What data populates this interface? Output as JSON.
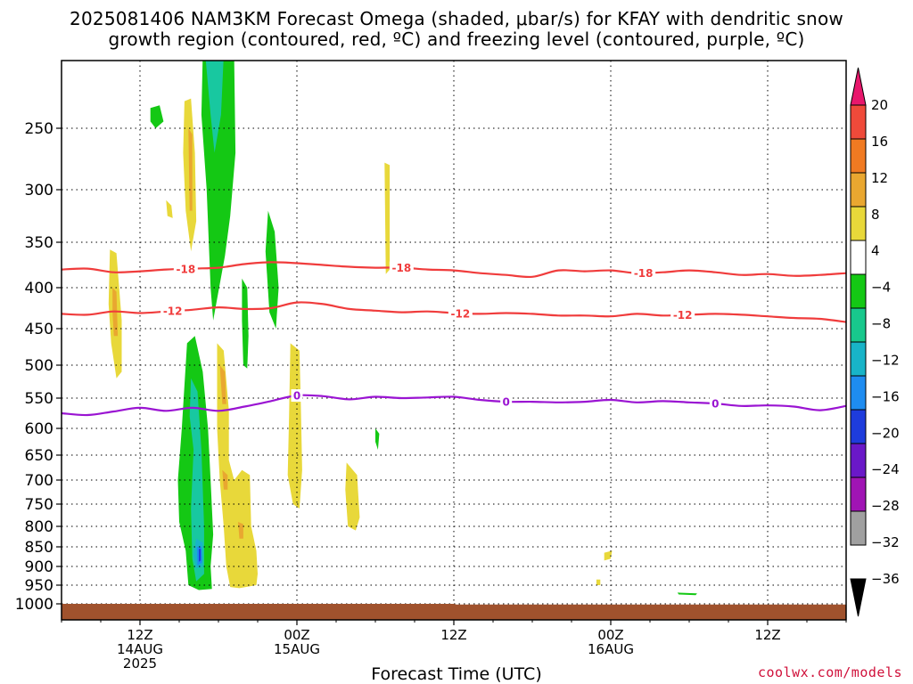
{
  "title_line1": "2025081406 NAM3KM Forecast Omega (shaded, μbar/s) for KFAY with dendritic snow",
  "title_line2": "growth region (contoured, red, ºC) and freezing level (contoured, purple, ºC)",
  "credit": "coolwx.com/models",
  "chart_data": {
    "type": "time-height cross section",
    "xlabel": "Forecast Time (UTC)",
    "x_ticks": [
      {
        "label": [
          "12Z",
          "14AUG",
          "2025"
        ],
        "hour": 6
      },
      {
        "label": [
          "00Z",
          "15AUG"
        ],
        "hour": 18
      },
      {
        "label": [
          "12Z"
        ],
        "hour": 30
      },
      {
        "label": [
          "00Z",
          "16AUG"
        ],
        "hour": 42
      },
      {
        "label": [
          "12Z"
        ],
        "hour": 54
      }
    ],
    "x_range_hours": [
      0,
      60
    ],
    "y_axis": "pressure (hPa)",
    "y_ticks": [
      250,
      300,
      350,
      400,
      450,
      500,
      550,
      600,
      650,
      700,
      750,
      800,
      850,
      900,
      950,
      1000
    ],
    "y_range": [
      200,
      1025
    ],
    "gridlines": "dotted",
    "colorbar": {
      "labels": [
        "20",
        "16",
        "12",
        "8",
        "4",
        "−4",
        "−8",
        "−12",
        "−16",
        "−20",
        "−24",
        "−28",
        "−32",
        "−36"
      ],
      "colors_top_to_bottom": [
        "#e8176c",
        "#ef4a3a",
        "#f07a22",
        "#e9a730",
        "#e8d83a",
        "#ffffff",
        "#14c814",
        "#18c88c",
        "#18b4c8",
        "#1e8cf0",
        "#1e3cdc",
        "#6a18c8",
        "#a014b4",
        "#a0a0a0",
        "#000000"
      ]
    },
    "contours": [
      {
        "name": "-18",
        "color": "#f03c3c",
        "label": "-18",
        "points": [
          [
            0,
            380
          ],
          [
            2,
            379
          ],
          [
            4,
            383
          ],
          [
            6,
            382
          ],
          [
            8,
            380
          ],
          [
            10,
            379
          ],
          [
            12,
            378
          ],
          [
            14,
            374
          ],
          [
            16,
            372
          ],
          [
            18,
            373
          ],
          [
            20,
            375
          ],
          [
            22,
            377
          ],
          [
            24,
            378
          ],
          [
            26,
            378
          ],
          [
            28,
            380
          ],
          [
            30,
            381
          ],
          [
            32,
            384
          ],
          [
            34,
            386
          ],
          [
            36,
            388
          ],
          [
            38,
            381
          ],
          [
            40,
            382
          ],
          [
            42,
            381
          ],
          [
            44,
            384
          ],
          [
            46,
            383
          ],
          [
            48,
            381
          ],
          [
            50,
            383
          ],
          [
            52,
            386
          ],
          [
            54,
            385
          ],
          [
            56,
            387
          ],
          [
            58,
            386
          ],
          [
            60,
            384
          ]
        ],
        "label_hours": [
          9.5,
          26,
          44.5
        ]
      },
      {
        "name": "-12",
        "color": "#f03c3c",
        "label": "-12",
        "points": [
          [
            0,
            432
          ],
          [
            2,
            433
          ],
          [
            4,
            429
          ],
          [
            6,
            431
          ],
          [
            8,
            429
          ],
          [
            10,
            427
          ],
          [
            12,
            424
          ],
          [
            14,
            426
          ],
          [
            16,
            425
          ],
          [
            18,
            418
          ],
          [
            20,
            420
          ],
          [
            22,
            426
          ],
          [
            24,
            428
          ],
          [
            26,
            430
          ],
          [
            28,
            429
          ],
          [
            30,
            431
          ],
          [
            32,
            432
          ],
          [
            34,
            431
          ],
          [
            36,
            432
          ],
          [
            38,
            434
          ],
          [
            40,
            434
          ],
          [
            42,
            435
          ],
          [
            44,
            432
          ],
          [
            46,
            434
          ],
          [
            48,
            433
          ],
          [
            50,
            432
          ],
          [
            52,
            433
          ],
          [
            54,
            435
          ],
          [
            56,
            437
          ],
          [
            58,
            438
          ],
          [
            60,
            442
          ]
        ],
        "label_hours": [
          8.5,
          30.5,
          47.5
        ]
      },
      {
        "name": "0",
        "color": "#9a14d2",
        "label": "0",
        "points": [
          [
            0,
            575
          ],
          [
            2,
            578
          ],
          [
            4,
            572
          ],
          [
            6,
            566
          ],
          [
            8,
            571
          ],
          [
            10,
            566
          ],
          [
            12,
            571
          ],
          [
            14,
            564
          ],
          [
            16,
            555
          ],
          [
            18,
            546
          ],
          [
            20,
            547
          ],
          [
            22,
            552
          ],
          [
            24,
            548
          ],
          [
            26,
            550
          ],
          [
            28,
            549
          ],
          [
            30,
            548
          ],
          [
            32,
            553
          ],
          [
            34,
            556
          ],
          [
            36,
            556
          ],
          [
            38,
            557
          ],
          [
            40,
            556
          ],
          [
            42,
            553
          ],
          [
            44,
            557
          ],
          [
            46,
            555
          ],
          [
            48,
            557
          ],
          [
            50,
            559
          ],
          [
            52,
            563
          ],
          [
            54,
            562
          ],
          [
            56,
            564
          ],
          [
            58,
            570
          ],
          [
            60,
            563
          ]
        ],
        "label_hours": [
          18,
          34,
          50
        ]
      }
    ],
    "omega_regions": [
      {
        "level": "-6",
        "color": "#14c814",
        "polygon": [
          [
            10.8,
            196
          ],
          [
            13.2,
            196
          ],
          [
            13.3,
            270
          ],
          [
            12.9,
            325
          ],
          [
            12.5,
            365
          ],
          [
            11.6,
            440
          ],
          [
            11.4,
            400
          ],
          [
            11.1,
            300
          ],
          [
            10.7,
            240
          ]
        ]
      },
      {
        "level": "-12",
        "color": "#18c8a0",
        "polygon": [
          [
            11.0,
            196
          ],
          [
            12.4,
            196
          ],
          [
            12.2,
            240
          ],
          [
            11.7,
            270
          ],
          [
            11.4,
            240
          ]
        ]
      },
      {
        "level": "-6",
        "color": "#14c814",
        "polygon": [
          [
            6.8,
            235
          ],
          [
            7.5,
            233
          ],
          [
            7.8,
            245
          ],
          [
            7.2,
            250
          ],
          [
            6.8,
            245
          ]
        ]
      },
      {
        "level": "-6",
        "color": "#14c814",
        "polygon": [
          [
            15.8,
            320
          ],
          [
            16.3,
            340
          ],
          [
            16.6,
            400
          ],
          [
            16.4,
            450
          ],
          [
            15.9,
            430
          ],
          [
            15.6,
            360
          ]
        ]
      },
      {
        "level": "-6",
        "color": "#14c814",
        "polygon": [
          [
            13.8,
            390
          ],
          [
            14.2,
            400
          ],
          [
            14.3,
            460
          ],
          [
            14.2,
            505
          ],
          [
            13.9,
            500
          ],
          [
            13.8,
            440
          ]
        ]
      },
      {
        "level": "-6",
        "color": "#14c814",
        "polygon": [
          [
            24.0,
            600
          ],
          [
            24.3,
            610
          ],
          [
            24.2,
            640
          ],
          [
            24.0,
            625
          ]
        ]
      },
      {
        "level": "-6",
        "color": "#14c814",
        "polygon": [
          [
            47.1,
            970
          ],
          [
            48.6,
            972
          ],
          [
            48.5,
            977
          ],
          [
            47.2,
            975
          ]
        ]
      },
      {
        "level": "-6",
        "color": "#14c814",
        "polygon": [
          [
            9.6,
            470
          ],
          [
            10.2,
            460
          ],
          [
            10.8,
            510
          ],
          [
            11.2,
            600
          ],
          [
            11.4,
            700
          ],
          [
            11.6,
            820
          ],
          [
            11.4,
            900
          ],
          [
            11.5,
            960
          ],
          [
            10.5,
            963
          ],
          [
            9.7,
            950
          ],
          [
            9.5,
            860
          ],
          [
            9.0,
            790
          ],
          [
            8.9,
            700
          ],
          [
            9.2,
            600
          ]
        ]
      },
      {
        "level": "-12",
        "color": "#18c8a0",
        "polygon": [
          [
            9.9,
            520
          ],
          [
            10.4,
            540
          ],
          [
            10.7,
            640
          ],
          [
            10.9,
            800
          ],
          [
            10.9,
            920
          ],
          [
            10.3,
            940
          ],
          [
            10.0,
            880
          ],
          [
            9.9,
            760
          ],
          [
            10.1,
            640
          ],
          [
            9.8,
            580
          ]
        ]
      },
      {
        "level": "-16",
        "color": "#18b4c8",
        "polygon": [
          [
            10.3,
            830
          ],
          [
            10.8,
            840
          ],
          [
            10.8,
            900
          ],
          [
            10.3,
            905
          ],
          [
            10.1,
            870
          ]
        ]
      },
      {
        "level": "-20",
        "color": "#1e8cf0",
        "polygon": [
          [
            10.35,
            850
          ],
          [
            10.7,
            850
          ],
          [
            10.75,
            890
          ],
          [
            10.4,
            898
          ]
        ]
      },
      {
        "level": "-24",
        "color": "#1e3cdc",
        "polygon": [
          [
            10.5,
            855
          ],
          [
            10.65,
            855
          ],
          [
            10.65,
            885
          ],
          [
            10.5,
            888
          ]
        ]
      },
      {
        "level": "6",
        "color": "#e8d83a",
        "polygon": [
          [
            9.4,
            230
          ],
          [
            9.9,
            228
          ],
          [
            10.2,
            270
          ],
          [
            10.3,
            330
          ],
          [
            9.9,
            360
          ],
          [
            9.5,
            320
          ],
          [
            9.3,
            270
          ]
        ]
      },
      {
        "level": "6",
        "color": "#e8d83a",
        "polygon": [
          [
            8.0,
            310
          ],
          [
            8.4,
            315
          ],
          [
            8.5,
            327
          ],
          [
            8.1,
            325
          ]
        ]
      },
      {
        "level": "10",
        "color": "#e9a730",
        "polygon": [
          [
            9.7,
            250
          ],
          [
            10.0,
            255
          ],
          [
            10.0,
            320
          ],
          [
            9.8,
            320
          ]
        ]
      },
      {
        "level": "6",
        "color": "#e8d83a",
        "polygon": [
          [
            3.7,
            358
          ],
          [
            4.2,
            362
          ],
          [
            4.6,
            440
          ],
          [
            4.6,
            510
          ],
          [
            4.2,
            520
          ],
          [
            3.8,
            470
          ],
          [
            3.6,
            420
          ]
        ]
      },
      {
        "level": "10",
        "color": "#e9a730",
        "polygon": [
          [
            3.9,
            400
          ],
          [
            4.2,
            405
          ],
          [
            4.3,
            460
          ],
          [
            4.0,
            460
          ],
          [
            3.9,
            430
          ]
        ]
      },
      {
        "level": "6",
        "color": "#e8d83a",
        "polygon": [
          [
            24.7,
            278
          ],
          [
            25.1,
            280
          ],
          [
            25.1,
            380
          ],
          [
            24.8,
            385
          ]
        ]
      },
      {
        "level": "6",
        "color": "#e8d83a",
        "polygon": [
          [
            11.9,
            470
          ],
          [
            12.4,
            480
          ],
          [
            12.8,
            570
          ],
          [
            12.8,
            660
          ],
          [
            13.2,
            700
          ],
          [
            13.8,
            680
          ],
          [
            14.4,
            690
          ],
          [
            14.5,
            800
          ],
          [
            14.9,
            860
          ],
          [
            15.0,
            920
          ],
          [
            14.9,
            950
          ],
          [
            13.6,
            958
          ],
          [
            12.9,
            955
          ],
          [
            12.6,
            900
          ],
          [
            12.4,
            800
          ],
          [
            12.1,
            700
          ],
          [
            11.9,
            600
          ]
        ]
      },
      {
        "level": "10",
        "color": "#e9a730",
        "polygon": [
          [
            12.1,
            500
          ],
          [
            12.5,
            510
          ],
          [
            12.6,
            560
          ],
          [
            12.3,
            560
          ]
        ]
      },
      {
        "level": "10",
        "color": "#e9a730",
        "polygon": [
          [
            12.3,
            680
          ],
          [
            12.7,
            690
          ],
          [
            12.7,
            720
          ],
          [
            12.4,
            720
          ]
        ]
      },
      {
        "level": "10",
        "color": "#e9a730",
        "polygon": [
          [
            13.5,
            790
          ],
          [
            13.9,
            795
          ],
          [
            13.9,
            830
          ],
          [
            13.6,
            830
          ]
        ]
      },
      {
        "level": "6",
        "color": "#e8d83a",
        "polygon": [
          [
            17.5,
            470
          ],
          [
            18.2,
            480
          ],
          [
            18.3,
            560
          ],
          [
            18.4,
            680
          ],
          [
            18.2,
            760
          ],
          [
            17.7,
            750
          ],
          [
            17.3,
            690
          ],
          [
            17.4,
            580
          ]
        ]
      },
      {
        "level": "6",
        "color": "#e8d83a",
        "polygon": [
          [
            21.8,
            665
          ],
          [
            22.6,
            690
          ],
          [
            22.8,
            780
          ],
          [
            22.5,
            810
          ],
          [
            21.9,
            800
          ],
          [
            21.7,
            720
          ]
        ]
      },
      {
        "level": "6",
        "color": "#e8d83a",
        "polygon": [
          [
            41.5,
            865
          ],
          [
            42.1,
            860
          ],
          [
            42.0,
            880
          ],
          [
            41.5,
            885
          ]
        ]
      },
      {
        "level": "6",
        "color": "#e8d83a",
        "polygon": [
          [
            40.9,
            935
          ],
          [
            41.2,
            935
          ],
          [
            41.2,
            950
          ],
          [
            40.9,
            950
          ]
        ]
      }
    ],
    "terrain": {
      "color": "#a0522d",
      "top_hPa": 1000
    }
  }
}
